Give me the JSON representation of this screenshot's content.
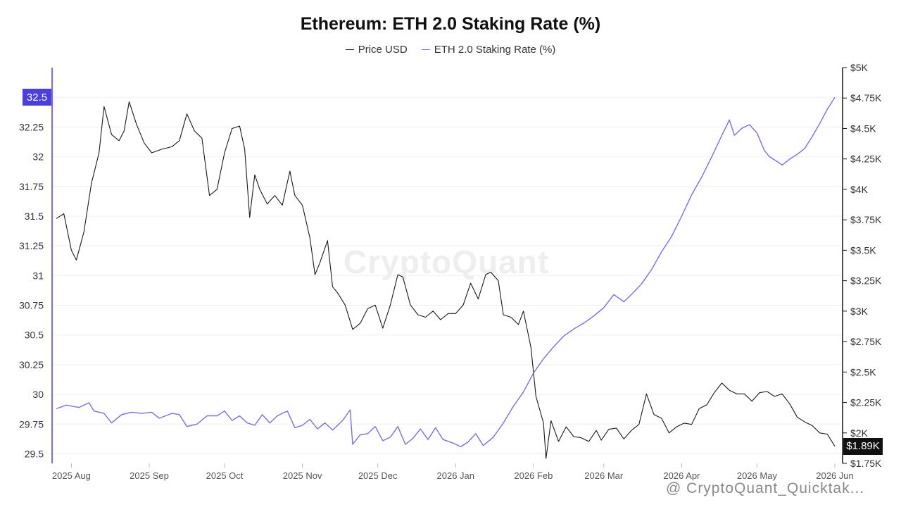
{
  "header": {
    "title": "Ethereum: ETH 2.0 Staking Rate (%)"
  },
  "legend": {
    "price_label": "Price USD",
    "staking_label": "ETH 2.0 Staking Rate (%)"
  },
  "watermark": "CryptoQuant",
  "footer": {
    "credit": "@ CryptoQuant_Quicktak..."
  },
  "badges": {
    "latest_price": "$1.89K",
    "left_axis_max": "32.5"
  },
  "colors": {
    "price": "#1a1a1a",
    "staking": "#7b6cf0",
    "left_axis": "#7b6cf0",
    "right_axis": "#111111",
    "grid": "#efefef"
  },
  "chart_data": {
    "type": "line",
    "title": "Ethereum: ETH 2.0 Staking Rate (%)",
    "x_ticks": [
      "2025 Aug",
      "2025 Sep",
      "2025 Oct",
      "2025 Nov",
      "2025 Dec",
      "2026 Jan",
      "2026 Feb",
      "2026 Mar",
      "2026 Apr",
      "2026 May",
      "2026 Jun"
    ],
    "x_range": [
      "2025-07-26",
      "2026-06-01"
    ],
    "y_left": {
      "label": "",
      "ticks": [
        "32.5",
        "32.25",
        "32",
        "31.75",
        "31.5",
        "31.25",
        "31",
        "30.75",
        "30.5",
        "30.25",
        "30",
        "29.75",
        "29.5"
      ],
      "range": [
        29.42,
        32.75
      ]
    },
    "y_right": {
      "label": "",
      "ticks": [
        "$5K",
        "$4.75K",
        "$4.5K",
        "$4.25K",
        "$4K",
        "$3.75K",
        "$3.5K",
        "$3.25K",
        "$3K",
        "$2.75K",
        "$2.5K",
        "$2.25K",
        "$2K",
        "$1.75K"
      ],
      "range": [
        1750,
        5000
      ]
    },
    "grid": true,
    "legend_position": "top-center",
    "series": [
      {
        "name": "Price USD",
        "axis": "right",
        "points": [
          [
            "2025-07-26",
            3760
          ],
          [
            "2025-07-29",
            3800
          ],
          [
            "2025-08-01",
            3500
          ],
          [
            "2025-08-03",
            3420
          ],
          [
            "2025-08-06",
            3650
          ],
          [
            "2025-08-09",
            4050
          ],
          [
            "2025-08-12",
            4300
          ],
          [
            "2025-08-14",
            4680
          ],
          [
            "2025-08-17",
            4450
          ],
          [
            "2025-08-20",
            4400
          ],
          [
            "2025-08-22",
            4480
          ],
          [
            "2025-08-24",
            4720
          ],
          [
            "2025-08-27",
            4530
          ],
          [
            "2025-08-30",
            4380
          ],
          [
            "2025-09-02",
            4300
          ],
          [
            "2025-09-06",
            4330
          ],
          [
            "2025-09-10",
            4350
          ],
          [
            "2025-09-13",
            4400
          ],
          [
            "2025-09-16",
            4620
          ],
          [
            "2025-09-19",
            4480
          ],
          [
            "2025-09-22",
            4420
          ],
          [
            "2025-09-25",
            3950
          ],
          [
            "2025-09-28",
            4000
          ],
          [
            "2025-10-01",
            4300
          ],
          [
            "2025-10-04",
            4500
          ],
          [
            "2025-10-07",
            4520
          ],
          [
            "2025-10-09",
            4330
          ],
          [
            "2025-10-11",
            3770
          ],
          [
            "2025-10-13",
            4120
          ],
          [
            "2025-10-15",
            4000
          ],
          [
            "2025-10-18",
            3880
          ],
          [
            "2025-10-21",
            3950
          ],
          [
            "2025-10-24",
            3870
          ],
          [
            "2025-10-27",
            4150
          ],
          [
            "2025-10-29",
            3950
          ],
          [
            "2025-11-01",
            3870
          ],
          [
            "2025-11-04",
            3600
          ],
          [
            "2025-11-06",
            3300
          ],
          [
            "2025-11-08",
            3400
          ],
          [
            "2025-11-11",
            3580
          ],
          [
            "2025-11-13",
            3200
          ],
          [
            "2025-11-15",
            3150
          ],
          [
            "2025-11-18",
            3050
          ],
          [
            "2025-11-21",
            2850
          ],
          [
            "2025-11-24",
            2900
          ],
          [
            "2025-11-27",
            3020
          ],
          [
            "2025-11-30",
            3050
          ],
          [
            "2025-12-03",
            2860
          ],
          [
            "2025-12-06",
            3050
          ],
          [
            "2025-12-09",
            3300
          ],
          [
            "2025-12-11",
            3280
          ],
          [
            "2025-12-14",
            3050
          ],
          [
            "2025-12-17",
            2970
          ],
          [
            "2025-12-20",
            2950
          ],
          [
            "2025-12-23",
            3000
          ],
          [
            "2025-12-26",
            2930
          ],
          [
            "2025-12-29",
            2980
          ],
          [
            "2026-01-01",
            2980
          ],
          [
            "2026-01-04",
            3050
          ],
          [
            "2026-01-07",
            3230
          ],
          [
            "2026-01-10",
            3100
          ],
          [
            "2026-01-13",
            3300
          ],
          [
            "2026-01-15",
            3320
          ],
          [
            "2026-01-18",
            3250
          ],
          [
            "2026-01-20",
            2970
          ],
          [
            "2026-01-23",
            2950
          ],
          [
            "2026-01-26",
            2890
          ],
          [
            "2026-01-28",
            3000
          ],
          [
            "2026-01-31",
            2700
          ],
          [
            "2026-02-02",
            2300
          ],
          [
            "2026-02-05",
            2080
          ],
          [
            "2026-02-06",
            1790
          ],
          [
            "2026-02-08",
            2100
          ],
          [
            "2026-02-11",
            1930
          ],
          [
            "2026-02-14",
            2050
          ],
          [
            "2026-02-17",
            1970
          ],
          [
            "2026-02-20",
            1960
          ],
          [
            "2026-02-23",
            1930
          ],
          [
            "2026-02-26",
            2020
          ],
          [
            "2026-02-28",
            1940
          ],
          [
            "2026-03-03",
            2030
          ],
          [
            "2026-03-06",
            2040
          ],
          [
            "2026-03-09",
            1950
          ],
          [
            "2026-03-12",
            2020
          ],
          [
            "2026-03-15",
            2070
          ],
          [
            "2026-03-18",
            2320
          ],
          [
            "2026-03-21",
            2150
          ],
          [
            "2026-03-24",
            2120
          ],
          [
            "2026-03-27",
            2000
          ],
          [
            "2026-03-30",
            2050
          ],
          [
            "2026-04-02",
            2080
          ],
          [
            "2026-04-05",
            2070
          ],
          [
            "2026-04-08",
            2200
          ],
          [
            "2026-04-11",
            2230
          ],
          [
            "2026-04-14",
            2330
          ],
          [
            "2026-04-17",
            2410
          ],
          [
            "2026-04-20",
            2350
          ],
          [
            "2026-04-23",
            2320
          ],
          [
            "2026-04-26",
            2320
          ],
          [
            "2026-04-29",
            2260
          ],
          [
            "2026-05-02",
            2330
          ],
          [
            "2026-05-05",
            2340
          ],
          [
            "2026-05-08",
            2300
          ],
          [
            "2026-05-11",
            2320
          ],
          [
            "2026-05-14",
            2240
          ],
          [
            "2026-05-17",
            2130
          ],
          [
            "2026-05-20",
            2090
          ],
          [
            "2026-05-23",
            2060
          ],
          [
            "2026-05-26",
            2000
          ],
          [
            "2026-05-29",
            1990
          ],
          [
            "2026-06-01",
            1890
          ]
        ]
      },
      {
        "name": "ETH 2.0 Staking Rate (%)",
        "axis": "left",
        "points": [
          [
            "2025-07-26",
            29.88
          ],
          [
            "2025-07-30",
            29.91
          ],
          [
            "2025-08-04",
            29.89
          ],
          [
            "2025-08-08",
            29.93
          ],
          [
            "2025-08-10",
            29.86
          ],
          [
            "2025-08-14",
            29.84
          ],
          [
            "2025-08-17",
            29.76
          ],
          [
            "2025-08-21",
            29.83
          ],
          [
            "2025-08-25",
            29.85
          ],
          [
            "2025-08-29",
            29.84
          ],
          [
            "2025-09-02",
            29.85
          ],
          [
            "2025-09-05",
            29.8
          ],
          [
            "2025-09-10",
            29.84
          ],
          [
            "2025-09-13",
            29.83
          ],
          [
            "2025-09-16",
            29.73
          ],
          [
            "2025-09-20",
            29.75
          ],
          [
            "2025-09-24",
            29.82
          ],
          [
            "2025-09-28",
            29.82
          ],
          [
            "2025-10-01",
            29.86
          ],
          [
            "2025-10-04",
            29.78
          ],
          [
            "2025-10-07",
            29.82
          ],
          [
            "2025-10-10",
            29.76
          ],
          [
            "2025-10-13",
            29.74
          ],
          [
            "2025-10-16",
            29.83
          ],
          [
            "2025-10-19",
            29.76
          ],
          [
            "2025-10-22",
            29.82
          ],
          [
            "2025-10-26",
            29.86
          ],
          [
            "2025-10-29",
            29.72
          ],
          [
            "2025-11-01",
            29.74
          ],
          [
            "2025-11-04",
            29.79
          ],
          [
            "2025-11-07",
            29.71
          ],
          [
            "2025-11-10",
            29.76
          ],
          [
            "2025-11-13",
            29.7
          ],
          [
            "2025-11-17",
            29.78
          ],
          [
            "2025-11-20",
            29.87
          ],
          [
            "2025-11-21",
            29.58
          ],
          [
            "2025-11-24",
            29.66
          ],
          [
            "2025-11-27",
            29.67
          ],
          [
            "2025-11-30",
            29.73
          ],
          [
            "2025-12-03",
            29.61
          ],
          [
            "2025-12-06",
            29.64
          ],
          [
            "2025-12-09",
            29.73
          ],
          [
            "2025-12-12",
            29.58
          ],
          [
            "2025-12-15",
            29.63
          ],
          [
            "2025-12-18",
            29.71
          ],
          [
            "2025-12-21",
            29.62
          ],
          [
            "2025-12-24",
            29.72
          ],
          [
            "2025-12-27",
            29.62
          ],
          [
            "2025-12-31",
            29.59
          ],
          [
            "2026-01-03",
            29.56
          ],
          [
            "2026-01-06",
            29.6
          ],
          [
            "2026-01-09",
            29.67
          ],
          [
            "2026-01-12",
            29.57
          ],
          [
            "2026-01-16",
            29.64
          ],
          [
            "2026-01-20",
            29.76
          ],
          [
            "2026-01-24",
            29.9
          ],
          [
            "2026-01-28",
            30.02
          ],
          [
            "2026-02-01",
            30.18
          ],
          [
            "2026-02-05",
            30.3
          ],
          [
            "2026-02-09",
            30.4
          ],
          [
            "2026-02-13",
            30.49
          ],
          [
            "2026-02-17",
            30.55
          ],
          [
            "2026-02-21",
            30.6
          ],
          [
            "2026-02-25",
            30.66
          ],
          [
            "2026-03-01",
            30.73
          ],
          [
            "2026-03-05",
            30.84
          ],
          [
            "2026-03-09",
            30.78
          ],
          [
            "2026-03-12",
            30.84
          ],
          [
            "2026-03-16",
            30.93
          ],
          [
            "2026-03-20",
            31.05
          ],
          [
            "2026-03-24",
            31.2
          ],
          [
            "2026-03-28",
            31.33
          ],
          [
            "2026-04-01",
            31.5
          ],
          [
            "2026-04-05",
            31.68
          ],
          [
            "2026-04-09",
            31.83
          ],
          [
            "2026-04-13",
            32.0
          ],
          [
            "2026-04-17",
            32.18
          ],
          [
            "2026-04-20",
            32.31
          ],
          [
            "2026-04-22",
            32.18
          ],
          [
            "2026-04-25",
            32.24
          ],
          [
            "2026-04-28",
            32.27
          ],
          [
            "2026-05-01",
            32.2
          ],
          [
            "2026-05-04",
            32.05
          ],
          [
            "2026-05-06",
            32.0
          ],
          [
            "2026-05-09",
            31.96
          ],
          [
            "2026-05-11",
            31.93
          ],
          [
            "2026-05-14",
            31.98
          ],
          [
            "2026-05-17",
            32.02
          ],
          [
            "2026-05-20",
            32.07
          ],
          [
            "2026-05-23",
            32.17
          ],
          [
            "2026-05-26",
            32.28
          ],
          [
            "2026-05-29",
            32.4
          ],
          [
            "2026-06-01",
            32.5
          ]
        ]
      }
    ]
  }
}
